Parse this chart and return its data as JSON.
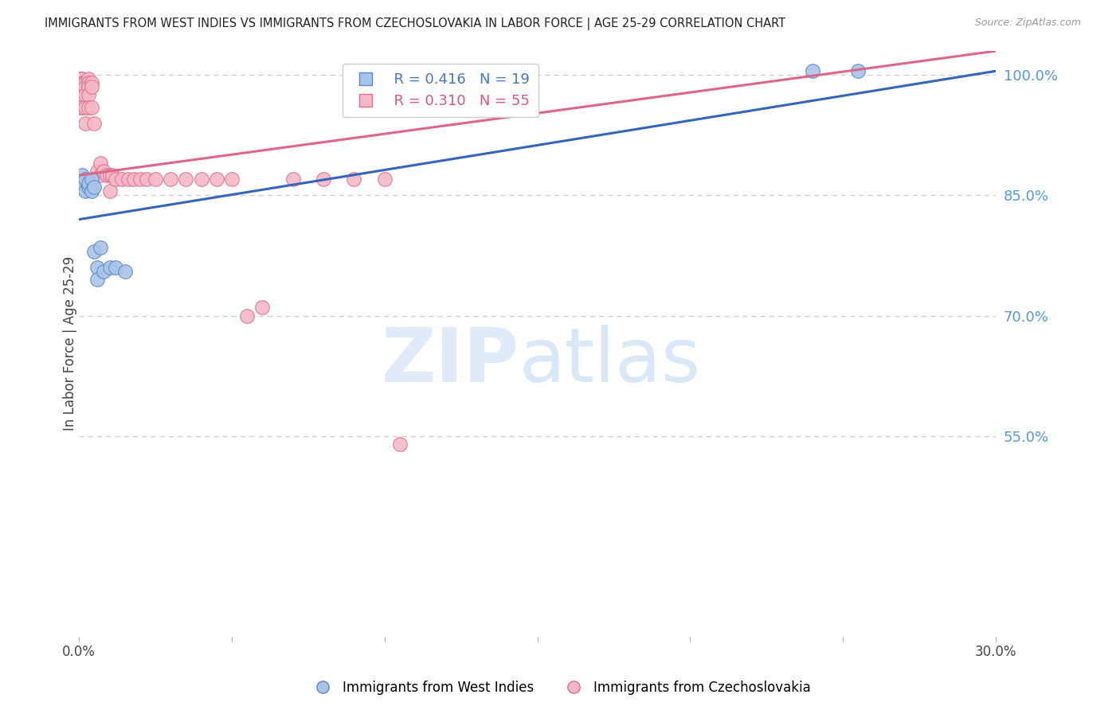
{
  "title": "IMMIGRANTS FROM WEST INDIES VS IMMIGRANTS FROM CZECHOSLOVAKIA IN LABOR FORCE | AGE 25-29 CORRELATION CHART",
  "source": "Source: ZipAtlas.com",
  "ylabel_left": "In Labor Force | Age 25-29",
  "xlim": [
    0.0,
    0.3
  ],
  "ylim": [
    0.3,
    1.03
  ],
  "xticks": [
    0.0,
    0.05,
    0.1,
    0.15,
    0.2,
    0.25,
    0.3
  ],
  "xtick_labels": [
    "0.0%",
    "",
    "",
    "",
    "",
    "",
    "30.0%"
  ],
  "yticks_right": [
    0.55,
    0.7,
    0.85,
    1.0
  ],
  "ytick_right_labels": [
    "55.0%",
    "70.0%",
    "85.0%",
    "100.0%"
  ],
  "grid_color": "#cccccc",
  "background_color": "#ffffff",
  "west_indies_fill": "#aac4e8",
  "west_indies_edge": "#5588cc",
  "czech_fill": "#f5b8c8",
  "czech_edge": "#e07090",
  "west_indies_line_color": "#3366bb",
  "czech_line_color": "#dd6688",
  "legend_R_west": "R = 0.416",
  "legend_N_west": "N = 19",
  "legend_R_czech": "R = 0.310",
  "legend_N_czech": "N = 55",
  "legend_color_west": "#4477cc",
  "legend_color_czech": "#dd5577",
  "legend_label_west": "Immigrants from West Indies",
  "legend_label_czech": "Immigrants from Czechoslovakia",
  "west_line_x0": 0.0,
  "west_line_y0": 0.82,
  "west_line_x1": 0.3,
  "west_line_y1": 1.005,
  "czech_line_x0": 0.0,
  "czech_line_y0": 0.875,
  "czech_line_x1": 0.3,
  "czech_line_y1": 1.03,
  "west_indies_x": [
    0.001,
    0.001,
    0.002,
    0.002,
    0.003,
    0.003,
    0.004,
    0.004,
    0.005,
    0.005,
    0.006,
    0.006,
    0.007,
    0.008,
    0.01,
    0.012,
    0.015,
    0.24,
    0.255
  ],
  "west_indies_y": [
    0.875,
    0.865,
    0.87,
    0.855,
    0.86,
    0.865,
    0.87,
    0.855,
    0.86,
    0.78,
    0.76,
    0.745,
    0.785,
    0.755,
    0.76,
    0.76,
    0.755,
    1.005,
    1.005
  ],
  "czech_x": [
    0.0005,
    0.0005,
    0.0005,
    0.0005,
    0.0005,
    0.0008,
    0.0008,
    0.0008,
    0.001,
    0.001,
    0.001,
    0.001,
    0.001,
    0.0015,
    0.002,
    0.002,
    0.002,
    0.002,
    0.002,
    0.003,
    0.003,
    0.003,
    0.003,
    0.003,
    0.004,
    0.004,
    0.004,
    0.005,
    0.006,
    0.007,
    0.007,
    0.008,
    0.009,
    0.01,
    0.01,
    0.011,
    0.012,
    0.014,
    0.016,
    0.018,
    0.02,
    0.022,
    0.025,
    0.03,
    0.035,
    0.04,
    0.045,
    0.05,
    0.055,
    0.06,
    0.07,
    0.08,
    0.09,
    0.1,
    0.105
  ],
  "czech_y": [
    0.995,
    0.99,
    0.985,
    0.975,
    0.96,
    0.995,
    0.99,
    0.985,
    0.995,
    0.99,
    0.985,
    0.975,
    0.96,
    0.99,
    0.99,
    0.985,
    0.975,
    0.96,
    0.94,
    0.995,
    0.99,
    0.985,
    0.975,
    0.96,
    0.99,
    0.985,
    0.96,
    0.94,
    0.88,
    0.875,
    0.89,
    0.88,
    0.875,
    0.875,
    0.855,
    0.875,
    0.87,
    0.87,
    0.87,
    0.87,
    0.87,
    0.87,
    0.87,
    0.87,
    0.87,
    0.87,
    0.87,
    0.87,
    0.7,
    0.71,
    0.87,
    0.87,
    0.87,
    0.87,
    0.54
  ]
}
